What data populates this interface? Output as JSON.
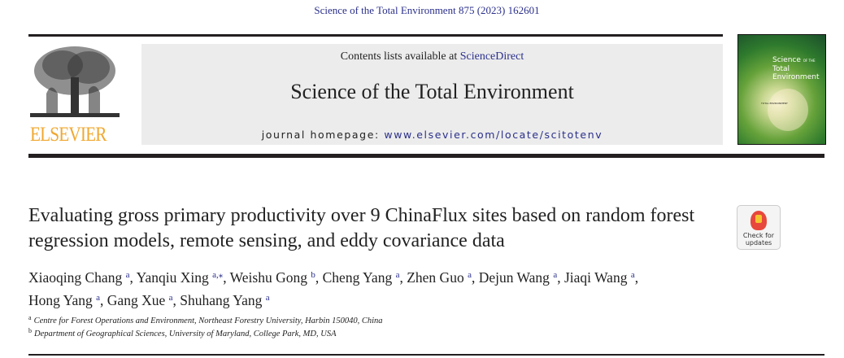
{
  "header": {
    "citation": "Science of the Total Environment 875 (2023) 162601",
    "contents_prefix": "Contents lists available at ",
    "contents_link": "ScienceDirect",
    "journal_title": "Science of the Total Environment",
    "homepage_prefix": "journal homepage: ",
    "homepage_url": "www.elsevier.com/locate/scitotenv",
    "publisher_logo": "ELSEVIER",
    "cover_title_1": "Science",
    "cover_title_of": "OF THE",
    "cover_title_2": "Total Environment",
    "cover_small": "TOTAL ENVIRONMENT"
  },
  "badge": {
    "label_1": "Check for",
    "label_2": "updates"
  },
  "article": {
    "title": "Evaluating gross primary productivity over 9 ChinaFlux sites based on random forest regression models, remote sensing, and eddy covariance data",
    "authors": [
      {
        "name": "Xiaoqing Chang",
        "aff": "a"
      },
      {
        "name": "Yanqiu Xing",
        "aff": "a,⁎"
      },
      {
        "name": "Weishu Gong",
        "aff": "b"
      },
      {
        "name": "Cheng Yang",
        "aff": "a"
      },
      {
        "name": "Zhen Guo",
        "aff": "a"
      },
      {
        "name": "Dejun Wang",
        "aff": "a"
      },
      {
        "name": "Jiaqi Wang",
        "aff": "a"
      },
      {
        "name": "Hong Yang",
        "aff": "a"
      },
      {
        "name": "Gang Xue",
        "aff": "a"
      },
      {
        "name": "Shuhang Yang",
        "aff": "a"
      }
    ],
    "affiliations": [
      {
        "key": "a",
        "text": "Centre for Forest Operations and Environment, Northeast Forestry University, Harbin 150040, China"
      },
      {
        "key": "b",
        "text": "Department of Geographical Sciences, University of Maryland, College Park, MD, USA"
      }
    ]
  }
}
